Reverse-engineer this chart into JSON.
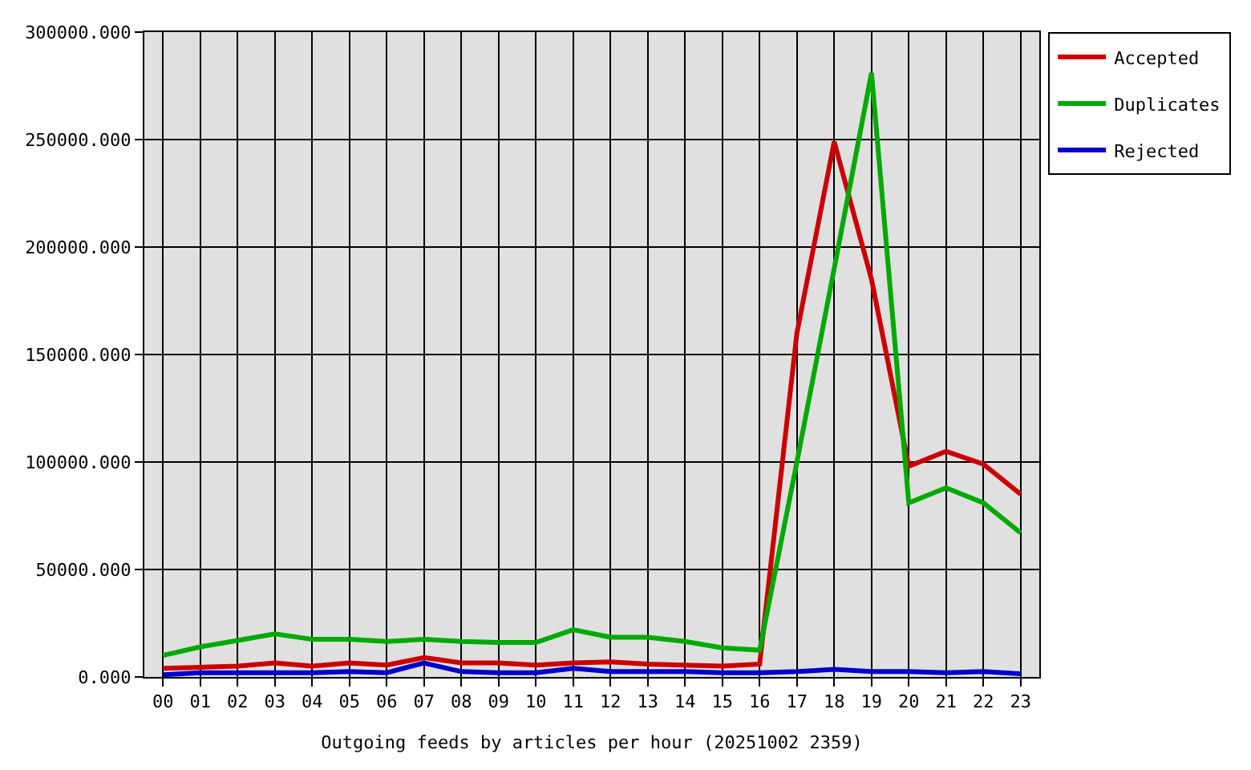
{
  "chart_data": {
    "type": "line",
    "xlabel": "Outgoing feeds by articles per hour (20251002 2359)",
    "categories": [
      "00",
      "01",
      "02",
      "03",
      "04",
      "05",
      "06",
      "07",
      "08",
      "09",
      "10",
      "11",
      "12",
      "13",
      "14",
      "15",
      "16",
      "17",
      "18",
      "19",
      "20",
      "21",
      "22",
      "23"
    ],
    "series": [
      {
        "name": "Accepted",
        "color": "#cc0000",
        "values": [
          4000,
          4500,
          5000,
          6500,
          5000,
          6500,
          5500,
          9000,
          6500,
          6500,
          5500,
          6500,
          7000,
          6000,
          5500,
          5000,
          6000,
          160000,
          249000,
          185000,
          98000,
          105000,
          99000,
          85000
        ]
      },
      {
        "name": "Duplicates",
        "color": "#00aa00",
        "values": [
          10000,
          14000,
          17000,
          20000,
          17500,
          17500,
          16500,
          17500,
          16500,
          16000,
          16000,
          22000,
          18500,
          18500,
          16500,
          13500,
          12500,
          100000,
          190000,
          281000,
          81000,
          88000,
          81000,
          67000
        ]
      },
      {
        "name": "Rejected",
        "color": "#0000cc",
        "values": [
          1000,
          2000,
          2000,
          2000,
          2000,
          2500,
          2000,
          6500,
          2500,
          2000,
          2000,
          4000,
          2500,
          2500,
          2500,
          2000,
          2000,
          2500,
          3500,
          2500,
          2500,
          2000,
          2500,
          1500
        ]
      }
    ],
    "ylim": [
      0,
      300000
    ],
    "yticks": [
      {
        "value": 0,
        "label": "0.000"
      },
      {
        "value": 50000,
        "label": "50000.000"
      },
      {
        "value": 100000,
        "label": "100000.000"
      },
      {
        "value": 150000,
        "label": "150000.000"
      },
      {
        "value": 200000,
        "label": "200000.000"
      },
      {
        "value": 250000,
        "label": "250000.000"
      },
      {
        "value": 300000,
        "label": "300000.000"
      }
    ],
    "grid": true,
    "legend": "top right",
    "marker": "none",
    "line_style": "solid"
  }
}
